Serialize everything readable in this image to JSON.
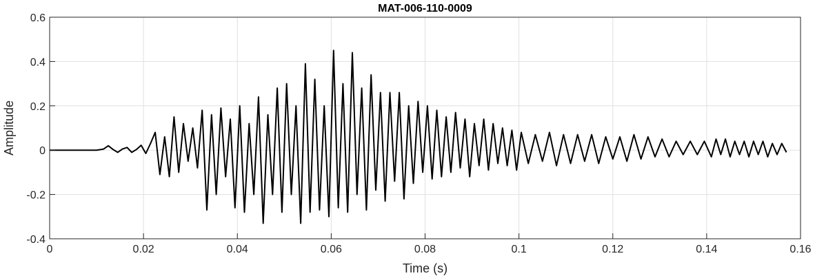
{
  "chart_data": {
    "type": "line",
    "title": "MAT-006-110-0009",
    "xlabel": "Time (s)",
    "ylabel": "Amplitude",
    "xlim": [
      0,
      0.16
    ],
    "ylim": [
      -0.4,
      0.6
    ],
    "grid": true,
    "x_ticks": [
      0,
      0.02,
      0.04,
      0.06,
      0.08,
      0.1,
      0.12,
      0.14,
      0.16
    ],
    "x_tick_labels": [
      "0",
      "0.02",
      "0.04",
      "0.06",
      "0.08",
      "0.1",
      "0.12",
      "0.14",
      "0.16"
    ],
    "y_ticks": [
      -0.4,
      -0.2,
      0,
      0.2,
      0.4,
      0.6
    ],
    "y_tick_labels": [
      "-0.4",
      "-0.2",
      "0",
      "0.2",
      "0.4",
      "0.6"
    ],
    "series": [
      {
        "color": "#000000",
        "x": [
          0,
          0.005,
          0.01,
          0.0115,
          0.0125,
          0.0135,
          0.0145,
          0.0155,
          0.0165,
          0.0175,
          0.0185,
          0.0195,
          0.0205,
          0.0215,
          0.0225,
          0.0235,
          0.0245,
          0.0255,
          0.0265,
          0.0275,
          0.0285,
          0.0295,
          0.0305,
          0.0315,
          0.0325,
          0.0335,
          0.0345,
          0.0355,
          0.0365,
          0.0375,
          0.0385,
          0.0395,
          0.0405,
          0.0415,
          0.0425,
          0.0435,
          0.0445,
          0.0455,
          0.0465,
          0.0475,
          0.0485,
          0.0495,
          0.0505,
          0.0515,
          0.0525,
          0.0535,
          0.0545,
          0.0555,
          0.0565,
          0.0575,
          0.0585,
          0.0595,
          0.0605,
          0.0615,
          0.0625,
          0.0635,
          0.0645,
          0.0655,
          0.0665,
          0.0675,
          0.0685,
          0.0695,
          0.0705,
          0.0715,
          0.0725,
          0.0735,
          0.0745,
          0.0755,
          0.0765,
          0.0775,
          0.0785,
          0.0795,
          0.0805,
          0.0815,
          0.0825,
          0.0835,
          0.0845,
          0.0855,
          0.0865,
          0.0875,
          0.0885,
          0.0895,
          0.0905,
          0.0915,
          0.0925,
          0.0935,
          0.0945,
          0.0955,
          0.0965,
          0.0975,
          0.0985,
          0.0995,
          0.1005,
          0.102,
          0.1035,
          0.105,
          0.1065,
          0.108,
          0.1095,
          0.111,
          0.1125,
          0.114,
          0.1155,
          0.117,
          0.1185,
          0.12,
          0.1215,
          0.123,
          0.1245,
          0.126,
          0.1275,
          0.129,
          0.1305,
          0.132,
          0.1335,
          0.135,
          0.1365,
          0.138,
          0.1395,
          0.141,
          0.142,
          0.143,
          0.144,
          0.145,
          0.146,
          0.147,
          0.148,
          0.149,
          0.15,
          0.151,
          0.152,
          0.153,
          0.154,
          0.155,
          0.156,
          0.157
        ],
        "values": [
          0,
          0,
          0,
          0.005,
          0.02,
          0.003,
          -0.01,
          0.005,
          0.012,
          -0.01,
          0.003,
          0.022,
          -0.015,
          0.03,
          0.08,
          -0.11,
          0.06,
          -0.12,
          0.15,
          -0.1,
          0.12,
          -0.05,
          0.1,
          -0.08,
          0.18,
          -0.27,
          0.16,
          -0.2,
          0.19,
          -0.12,
          0.14,
          -0.26,
          0.2,
          -0.28,
          0.12,
          -0.2,
          0.24,
          -0.33,
          0.16,
          -0.2,
          0.28,
          -0.28,
          0.3,
          -0.2,
          0.2,
          -0.33,
          0.39,
          -0.28,
          0.32,
          -0.27,
          0.2,
          -0.3,
          0.45,
          -0.26,
          0.3,
          -0.28,
          0.44,
          -0.2,
          0.28,
          -0.27,
          0.34,
          -0.18,
          0.26,
          -0.23,
          0.26,
          -0.14,
          0.26,
          -0.22,
          0.2,
          -0.15,
          0.22,
          -0.1,
          0.2,
          -0.13,
          0.18,
          -0.12,
          0.15,
          -0.1,
          0.17,
          -0.08,
          0.14,
          -0.12,
          0.12,
          -0.07,
          0.14,
          -0.09,
          0.12,
          -0.06,
          0.1,
          -0.07,
          0.09,
          -0.09,
          0.08,
          -0.06,
          0.07,
          -0.05,
          0.08,
          -0.07,
          0.07,
          -0.06,
          0.07,
          -0.05,
          0.07,
          -0.06,
          0.06,
          -0.04,
          0.06,
          -0.05,
          0.07,
          -0.04,
          0.06,
          -0.03,
          0.05,
          -0.03,
          0.04,
          -0.02,
          0.04,
          -0.02,
          0.04,
          -0.03,
          0.05,
          -0.02,
          0.05,
          -0.03,
          0.04,
          -0.02,
          0.04,
          -0.03,
          0.04,
          -0.02,
          0.04,
          -0.03,
          0.03,
          -0.02,
          0.03,
          -0.01
        ]
      }
    ]
  }
}
